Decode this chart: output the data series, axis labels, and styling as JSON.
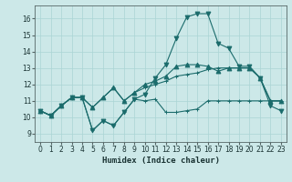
{
  "xlabel": "Humidex (Indice chaleur)",
  "background_color": "#cce8e8",
  "grid_color": "#aad4d4",
  "line_color": "#1a6b6b",
  "xlim": [
    -0.5,
    23.5
  ],
  "ylim": [
    8.5,
    16.8
  ],
  "yticks": [
    9,
    10,
    11,
    12,
    13,
    14,
    15,
    16
  ],
  "xticks": [
    0,
    1,
    2,
    3,
    4,
    5,
    6,
    7,
    8,
    9,
    10,
    11,
    12,
    13,
    14,
    15,
    16,
    17,
    18,
    19,
    20,
    21,
    22,
    23
  ],
  "series": [
    [
      10.4,
      10.1,
      10.7,
      11.2,
      11.2,
      9.2,
      9.8,
      9.5,
      10.3,
      11.1,
      11.0,
      11.1,
      10.3,
      10.3,
      10.4,
      10.5,
      11.0,
      11.0,
      11.0,
      11.0,
      11.0,
      11.0,
      11.0,
      11.0
    ],
    [
      10.4,
      10.1,
      10.7,
      11.2,
      11.2,
      10.6,
      11.2,
      11.8,
      11.0,
      11.5,
      11.8,
      12.0,
      12.2,
      12.5,
      12.6,
      12.7,
      12.9,
      13.0,
      13.0,
      13.0,
      13.0,
      12.4,
      11.0,
      11.0
    ],
    [
      10.4,
      10.1,
      10.7,
      11.2,
      11.2,
      10.6,
      11.2,
      11.8,
      11.0,
      11.5,
      12.0,
      12.2,
      12.5,
      13.1,
      13.2,
      13.2,
      13.1,
      12.8,
      13.0,
      13.0,
      13.0,
      12.4,
      11.0,
      11.0
    ],
    [
      10.4,
      10.1,
      10.7,
      11.2,
      11.2,
      9.2,
      9.8,
      9.5,
      10.3,
      11.1,
      11.4,
      12.4,
      13.2,
      14.8,
      16.1,
      16.3,
      16.3,
      14.5,
      14.2,
      13.1,
      13.1,
      12.4,
      10.7,
      10.4
    ]
  ],
  "markers": [
    "+",
    "+",
    "^",
    "v"
  ],
  "markersizes": [
    3.0,
    3.0,
    3.5,
    3.5
  ],
  "linewidths": [
    0.8,
    0.8,
    0.8,
    0.8
  ]
}
